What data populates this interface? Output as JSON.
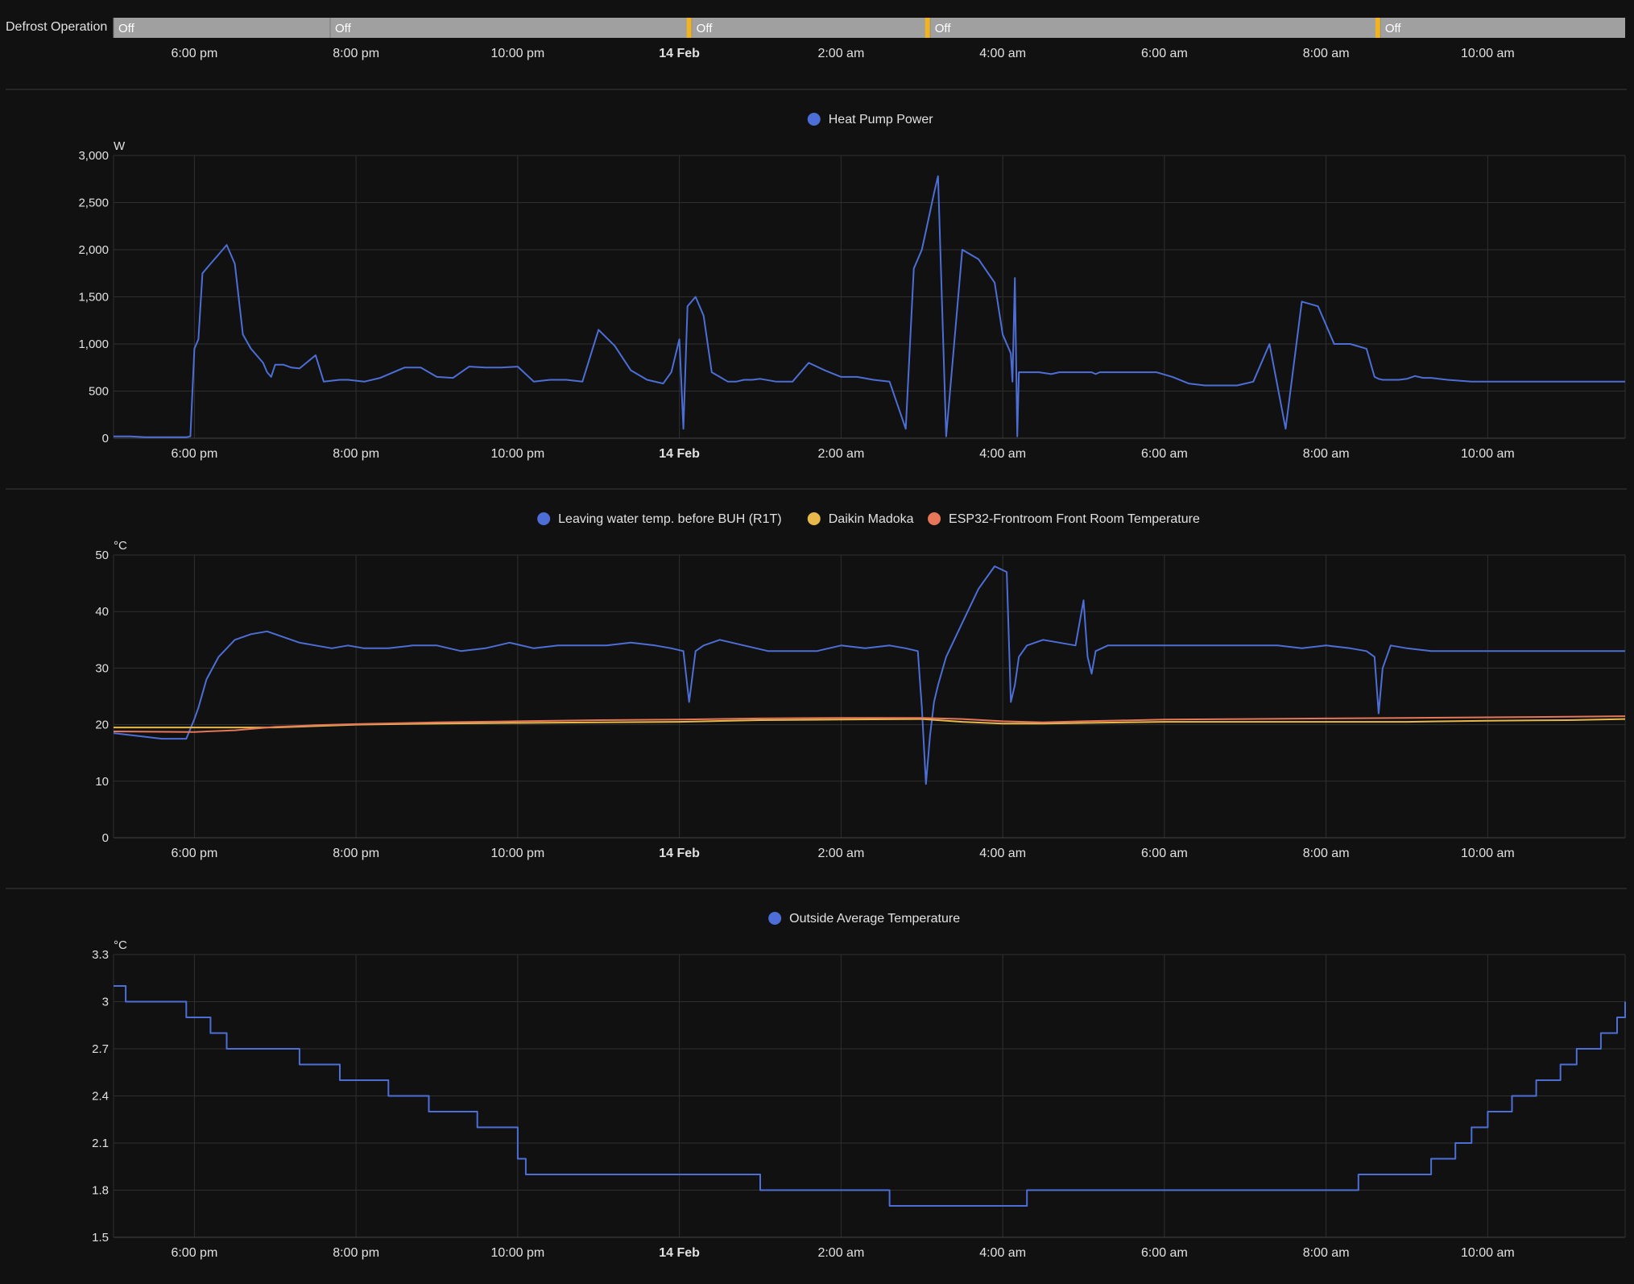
{
  "colors": {
    "background": "#111111",
    "grid": "#2f2f2f",
    "divider": "#3a3a3a",
    "text": "#e1e1e1",
    "defrost_off": "#a0a0a0",
    "defrost_on": "#f2b320",
    "blue": "#4c6ed6",
    "yellow": "#e8b84a",
    "orange": "#e57659"
  },
  "time_axis": {
    "tick_labels": [
      "6:00 pm",
      "8:00 pm",
      "10:00 pm",
      "14 Feb",
      "2:00 am",
      "4:00 am",
      "6:00 am",
      "8:00 am",
      "10:00 am"
    ],
    "tick_hours": [
      18,
      20,
      22,
      24,
      26,
      28,
      30,
      32,
      34
    ],
    "bold_tick": "14 Feb",
    "range_hours": [
      17.0,
      35.7
    ]
  },
  "defrost": {
    "label": "Defrost Operation",
    "segments": [
      {
        "state": "Off",
        "start": 17.0,
        "end": 19.68
      },
      {
        "state": "Off",
        "start": 19.68,
        "end": 24.15
      },
      {
        "state": "Off",
        "start": 24.15,
        "end": 27.1
      },
      {
        "state": "Off",
        "start": 27.1,
        "end": 32.67
      },
      {
        "state": "Off",
        "start": 32.67,
        "end": 35.7
      }
    ],
    "on_markers": [
      24.12,
      27.07,
      32.64
    ]
  },
  "chart_data": [
    {
      "type": "line",
      "unit": "W",
      "ylim": [
        0,
        3000
      ],
      "yticks": [
        0,
        500,
        1000,
        1500,
        2000,
        2500,
        3000
      ],
      "ytick_labels": [
        "0",
        "500",
        "1,000",
        "1,500",
        "2,000",
        "2,500",
        "3,000"
      ],
      "grid": true,
      "legend": "top-center",
      "series": [
        {
          "name": "Heat Pump Power",
          "color": "#4c6ed6",
          "step": false,
          "x": [
            17.0,
            17.2,
            17.4,
            17.6,
            17.9,
            17.95,
            18.0,
            18.05,
            18.1,
            18.2,
            18.3,
            18.4,
            18.5,
            18.6,
            18.7,
            18.85,
            18.9,
            18.95,
            19.0,
            19.1,
            19.2,
            19.3,
            19.5,
            19.6,
            19.8,
            19.9,
            20.1,
            20.3,
            20.6,
            20.8,
            21.0,
            21.2,
            21.4,
            21.6,
            21.8,
            22.0,
            22.2,
            22.4,
            22.6,
            22.8,
            23.0,
            23.2,
            23.4,
            23.6,
            23.8,
            23.9,
            24.0,
            24.05,
            24.1,
            24.15,
            24.2,
            24.3,
            24.4,
            24.5,
            24.6,
            24.7,
            24.8,
            24.9,
            25.0,
            25.2,
            25.4,
            25.6,
            25.8,
            26.0,
            26.2,
            26.4,
            26.6,
            26.8,
            26.9,
            27.0,
            27.05,
            27.1,
            27.15,
            27.2,
            27.3,
            27.5,
            27.7,
            27.9,
            28.0,
            28.1,
            28.12,
            28.15,
            28.18,
            28.2,
            28.3,
            28.45,
            28.6,
            28.7,
            28.8,
            28.9,
            29.0,
            29.05,
            29.1,
            29.15,
            29.2,
            29.3,
            29.5,
            29.7,
            29.9,
            30.1,
            30.3,
            30.5,
            30.7,
            30.9,
            31.1,
            31.3,
            31.5,
            31.7,
            31.9,
            32.1,
            32.3,
            32.5,
            32.6,
            32.65,
            32.7,
            32.75,
            32.8,
            32.9,
            33.0,
            33.1,
            33.2,
            33.3,
            33.5,
            33.8,
            34.1,
            34.4,
            34.7,
            35.0,
            35.3,
            35.5,
            35.7
          ],
          "y": [
            20,
            20,
            10,
            10,
            10,
            20,
            950,
            1050,
            1750,
            1850,
            1950,
            2050,
            1850,
            1100,
            950,
            800,
            700,
            650,
            780,
            780,
            750,
            740,
            880,
            600,
            620,
            620,
            600,
            640,
            750,
            750,
            650,
            640,
            760,
            750,
            750,
            760,
            600,
            620,
            620,
            600,
            1150,
            980,
            720,
            620,
            580,
            700,
            1050,
            100,
            1400,
            1450,
            1500,
            1300,
            700,
            650,
            600,
            600,
            620,
            620,
            630,
            600,
            600,
            800,
            720,
            650,
            650,
            620,
            600,
            100,
            1800,
            2000,
            2200,
            2400,
            2600,
            2780,
            20,
            2000,
            1900,
            1650,
            1100,
            900,
            600,
            1700,
            20,
            700,
            700,
            700,
            680,
            700,
            700,
            700,
            700,
            700,
            700,
            680,
            700,
            700,
            700,
            700,
            700,
            650,
            580,
            560,
            560,
            560,
            600,
            1000,
            100,
            1450,
            1400,
            1000,
            1000,
            950,
            650,
            630,
            620,
            620,
            620,
            620,
            630,
            660,
            640,
            640,
            620,
            600,
            600,
            600,
            600,
            600,
            600,
            600,
            600
          ]
        }
      ]
    },
    {
      "type": "line",
      "unit": "°C",
      "ylim": [
        0,
        50
      ],
      "yticks": [
        0,
        10,
        20,
        30,
        40,
        50
      ],
      "ytick_labels": [
        "0",
        "10",
        "20",
        "30",
        "40",
        "50"
      ],
      "grid": true,
      "legend": "top-center",
      "series": [
        {
          "name": "Leaving water temp. before BUH (R1T)",
          "color": "#4c6ed6",
          "step": false,
          "x": [
            17.0,
            17.3,
            17.6,
            17.9,
            18.0,
            18.05,
            18.15,
            18.3,
            18.5,
            18.7,
            18.9,
            19.1,
            19.3,
            19.5,
            19.7,
            19.9,
            20.1,
            20.4,
            20.7,
            21.0,
            21.3,
            21.6,
            21.9,
            22.2,
            22.5,
            22.8,
            23.1,
            23.4,
            23.7,
            23.9,
            24.05,
            24.12,
            24.2,
            24.3,
            24.5,
            24.8,
            25.1,
            25.4,
            25.7,
            26.0,
            26.3,
            26.6,
            26.8,
            26.95,
            27.0,
            27.05,
            27.1,
            27.15,
            27.2,
            27.3,
            27.5,
            27.7,
            27.9,
            28.05,
            28.1,
            28.15,
            28.2,
            28.3,
            28.5,
            28.7,
            28.9,
            29.0,
            29.05,
            29.1,
            29.15,
            29.3,
            29.6,
            29.9,
            30.2,
            30.5,
            30.8,
            31.1,
            31.4,
            31.7,
            32.0,
            32.3,
            32.5,
            32.6,
            32.65,
            32.7,
            32.8,
            33.0,
            33.3,
            33.6,
            34.0,
            34.5,
            35.0,
            35.4,
            35.7
          ],
          "y": [
            18.5,
            18,
            17.5,
            17.5,
            21,
            23,
            28,
            32,
            35,
            36,
            36.5,
            35.5,
            34.5,
            34,
            33.5,
            34,
            33.5,
            33.5,
            34,
            34,
            33,
            33.5,
            34.5,
            33.5,
            34,
            34,
            34,
            34.5,
            34,
            33.5,
            33,
            24,
            33,
            34,
            35,
            34,
            33,
            33,
            33,
            34,
            33.5,
            34,
            33.5,
            33,
            23,
            9.5,
            18,
            24,
            27,
            32,
            38,
            44,
            48,
            47,
            24,
            27,
            32,
            34,
            35,
            34.5,
            34,
            42,
            32,
            29,
            33,
            34,
            34,
            34,
            34,
            34,
            34,
            34,
            34,
            33.5,
            34,
            33.5,
            33,
            32,
            22,
            30,
            34,
            33.5,
            33,
            33,
            33,
            33,
            33,
            33,
            33
          ]
        },
        {
          "name": "Daikin Madoka",
          "color": "#e8b84a",
          "step": false,
          "x": [
            17.0,
            18.0,
            19.0,
            20.0,
            21.0,
            22.0,
            23.0,
            24.0,
            25.0,
            26.0,
            27.0,
            27.5,
            28.0,
            28.5,
            29.0,
            30.0,
            31.0,
            32.0,
            33.0,
            34.0,
            35.0,
            35.7
          ],
          "y": [
            19.5,
            19.5,
            19.5,
            20,
            20.2,
            20.3,
            20.4,
            20.5,
            20.8,
            20.9,
            21,
            20.5,
            20.2,
            20.2,
            20.3,
            20.5,
            20.5,
            20.5,
            20.5,
            20.7,
            20.8,
            21
          ]
        },
        {
          "name": "ESP32-Frontroom Front Room Temperature",
          "color": "#e57659",
          "step": false,
          "x": [
            17.0,
            18.0,
            18.5,
            19.0,
            19.5,
            20.0,
            21.0,
            22.0,
            23.0,
            24.0,
            25.0,
            26.0,
            27.0,
            27.5,
            28.0,
            28.5,
            29.0,
            30.0,
            31.0,
            32.0,
            33.0,
            34.0,
            35.0,
            35.7
          ],
          "y": [
            18.8,
            18.7,
            19,
            19.6,
            19.9,
            20.1,
            20.4,
            20.6,
            20.8,
            20.9,
            21.1,
            21.2,
            21.2,
            21,
            20.6,
            20.4,
            20.6,
            20.9,
            21,
            21.1,
            21.2,
            21.3,
            21.4,
            21.5
          ]
        }
      ]
    },
    {
      "type": "line",
      "unit": "°C",
      "ylim": [
        1.5,
        3.3
      ],
      "yticks": [
        1.5,
        1.8,
        2.1,
        2.4,
        2.7,
        3.0,
        3.3
      ],
      "ytick_labels": [
        "1.5",
        "1.8",
        "2.1",
        "2.4",
        "2.7",
        "3",
        "3.3"
      ],
      "grid": true,
      "legend": "top-center",
      "series": [
        {
          "name": "Outside Average Temperature",
          "color": "#4c6ed6",
          "step": true,
          "x": [
            17.0,
            17.15,
            17.9,
            18.2,
            18.4,
            18.6,
            19.0,
            19.3,
            19.5,
            19.8,
            20.4,
            20.9,
            21.0,
            21.5,
            22.0,
            22.1,
            25.0,
            26.6,
            27.6,
            28.3,
            29.4,
            31.6,
            32.4,
            32.7,
            33.3,
            33.6,
            33.8,
            34.0,
            34.1,
            34.3,
            34.6,
            34.9,
            35.1,
            35.4,
            35.6,
            35.7
          ],
          "y": [
            3.1,
            3.0,
            2.9,
            2.8,
            2.7,
            2.7,
            2.7,
            2.6,
            2.6,
            2.5,
            2.4,
            2.3,
            2.3,
            2.2,
            2.0,
            1.9,
            1.8,
            1.7,
            1.7,
            1.8,
            1.8,
            1.8,
            1.9,
            1.9,
            2.0,
            2.1,
            2.2,
            2.3,
            2.3,
            2.4,
            2.5,
            2.6,
            2.7,
            2.8,
            2.9,
            3.0
          ]
        }
      ]
    }
  ]
}
